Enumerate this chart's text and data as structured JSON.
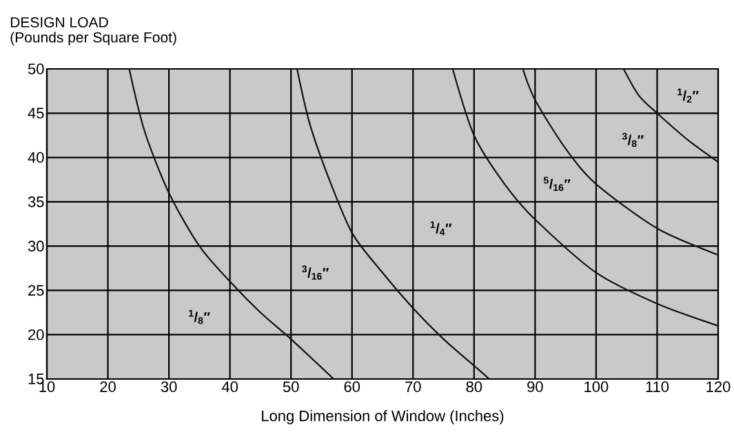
{
  "chart_data": {
    "type": "line",
    "title": "DESIGN LOAD",
    "ylabel": "(Pounds per Square Foot)",
    "xlabel": "Long Dimension of Window (Inches)",
    "xlim": [
      10,
      120
    ],
    "xticks": [
      10,
      20,
      30,
      40,
      50,
      60,
      70,
      80,
      90,
      100,
      110,
      120
    ],
    "ylim": [
      15,
      50
    ],
    "yticks": [
      15,
      20,
      25,
      30,
      35,
      40,
      45,
      50
    ],
    "grid": true,
    "marker": "none",
    "line_style": "solid",
    "series": [
      {
        "color": "#111111",
        "x": [
          23.5,
          26,
          30,
          35,
          40,
          45,
          50,
          57
        ],
        "values": [
          50,
          43,
          36,
          30,
          26,
          22.5,
          19.5,
          15
        ]
      },
      {
        "color": "#111111",
        "x": [
          51,
          53,
          56,
          60,
          65,
          70,
          75,
          80,
          82.5
        ],
        "values": [
          50,
          44,
          38,
          31.5,
          27,
          23,
          19.5,
          16.5,
          15
        ]
      },
      {
        "color": "#111111",
        "x": [
          76.5,
          80,
          85,
          90,
          100,
          110,
          120
        ],
        "values": [
          50,
          42.5,
          37,
          33,
          27,
          23.5,
          21
        ]
      },
      {
        "color": "#111111",
        "x": [
          88,
          90,
          95,
          100,
          110,
          120
        ],
        "values": [
          50,
          46.5,
          41,
          37,
          32,
          29
        ]
      },
      {
        "color": "#111111",
        "x": [
          104.5,
          107,
          110,
          115,
          120
        ],
        "values": [
          50,
          47,
          45,
          42,
          39.5
        ]
      }
    ],
    "annotations": [
      "$^{1}$/$_{8}$″",
      "$^{3}$/$_{16}$″",
      "$^{1}$/$_{4}$″",
      "$^{5}$/$_{16}$″",
      "$^{3}$/$_{8}$″",
      "$^{1}$/$_{2}$″"
    ]
  }
}
